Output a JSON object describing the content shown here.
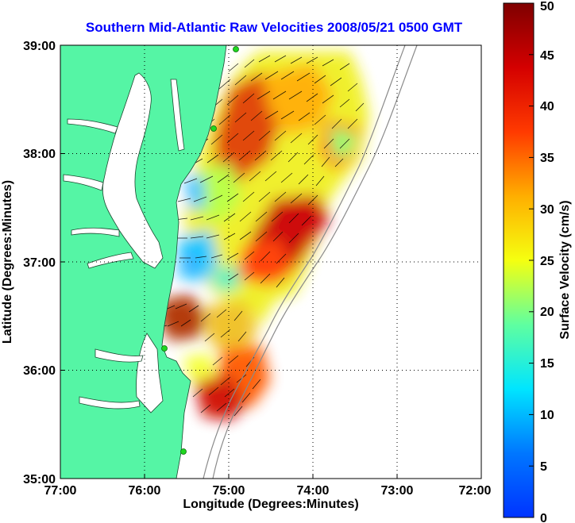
{
  "title": "Southern Mid-Atlantic Raw Velocities 2008/05/21 0500 GMT",
  "x_axis": {
    "label": "Longitude (Degrees:Minutes)",
    "ticks": [
      {
        "value": -77,
        "label": "77:00"
      },
      {
        "value": -76,
        "label": "76:00"
      },
      {
        "value": -75,
        "label": "75:00"
      },
      {
        "value": -74,
        "label": "74:00"
      },
      {
        "value": -73,
        "label": "73:00"
      },
      {
        "value": -72,
        "label": "72:00"
      }
    ],
    "range": [
      -77,
      -72
    ]
  },
  "y_axis": {
    "label": "Latitude (Degrees:Minutes)",
    "ticks": [
      {
        "value": 35,
        "label": "35:00"
      },
      {
        "value": 36,
        "label": "36:00"
      },
      {
        "value": 37,
        "label": "37:00"
      },
      {
        "value": 38,
        "label": "38:00"
      },
      {
        "value": 39,
        "label": "39:00"
      }
    ],
    "range": [
      35,
      39
    ]
  },
  "colorbar": {
    "label": "Surface Velocity (cm/s)",
    "ticks": [
      "0",
      "5",
      "10",
      "15",
      "20",
      "25",
      "30",
      "35",
      "40",
      "45",
      "50"
    ],
    "range": [
      0,
      50
    ]
  },
  "colors": {
    "land": "#55f5a5",
    "water": "#ffffff",
    "title": "#0000ff"
  },
  "grid": "dotted"
}
